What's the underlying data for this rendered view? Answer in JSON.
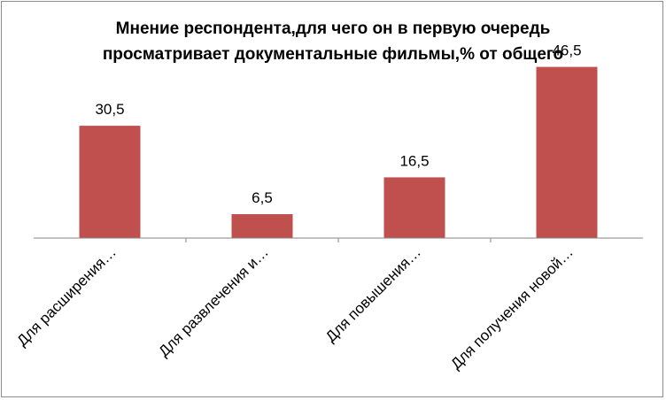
{
  "chart_data": {
    "type": "bar",
    "title_lines": [
      "Мнение респондента,для чего он в первую очередь",
      "просматривает документальные фильмы,% от общего"
    ],
    "categories": [
      "Для расширения…",
      "Для развлечения и…",
      "Для повышения…",
      "Для получения новой…"
    ],
    "values": [
      30.5,
      6.5,
      16.5,
      46.5
    ],
    "data_labels": [
      "30,5",
      "6,5",
      "16,5",
      "46,5"
    ],
    "ylim": [
      0,
      50
    ],
    "grid": false,
    "legend": "none",
    "bar_color": "#c0504d",
    "axis_color": "#868686"
  }
}
